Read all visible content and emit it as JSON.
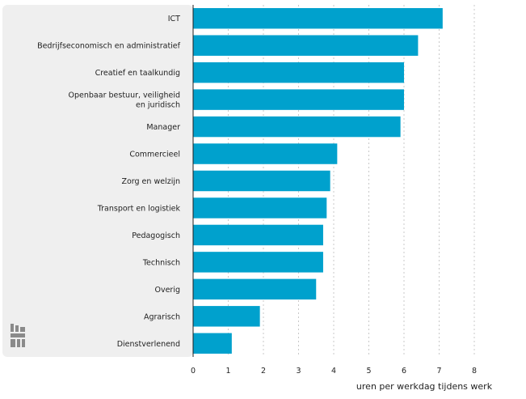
{
  "chart_data": {
    "type": "bar",
    "orientation": "horizontal",
    "categories": [
      "ICT",
      "Bedrijfseconomisch en administratief",
      "Creatief en taalkundig",
      "Openbaar bestuur, veiligheid en juridisch",
      "Manager",
      "Commercieel",
      "Zorg en welzijn",
      "Transport en logistiek",
      "Pedagogisch",
      "Technisch",
      "Overig",
      "Agrarisch",
      "Dienstverlenend"
    ],
    "category_lines": [
      [
        "ICT"
      ],
      [
        "Bedrijfseconomisch en administratief"
      ],
      [
        "Creatief en taalkundig"
      ],
      [
        "Openbaar bestuur, veiligheid",
        "en juridisch"
      ],
      [
        "Manager"
      ],
      [
        "Commercieel"
      ],
      [
        "Zorg en welzijn"
      ],
      [
        "Transport en logistiek"
      ],
      [
        "Pedagogisch"
      ],
      [
        "Technisch"
      ],
      [
        "Overig"
      ],
      [
        "Agrarisch"
      ],
      [
        "Dienstverlenend"
      ]
    ],
    "values": [
      7.1,
      6.4,
      6.0,
      6.0,
      5.9,
      4.1,
      3.9,
      3.8,
      3.7,
      3.7,
      3.5,
      1.9,
      1.1
    ],
    "xlim": [
      0,
      8
    ],
    "xticks": [
      0,
      1,
      2,
      3,
      4,
      5,
      6,
      7,
      8
    ],
    "xlabel": "uren per werkdag tijdens werk",
    "ylabel": "",
    "title": "",
    "grid": "vertical-dashed",
    "colors": {
      "bar": "#00a1cd",
      "panel": "#efefef",
      "grid": "#c8c8c8",
      "axis": "#1f1f1f",
      "logo": "#8a8a8a"
    }
  },
  "logo": {
    "icon": "cbs-logo-icon"
  }
}
